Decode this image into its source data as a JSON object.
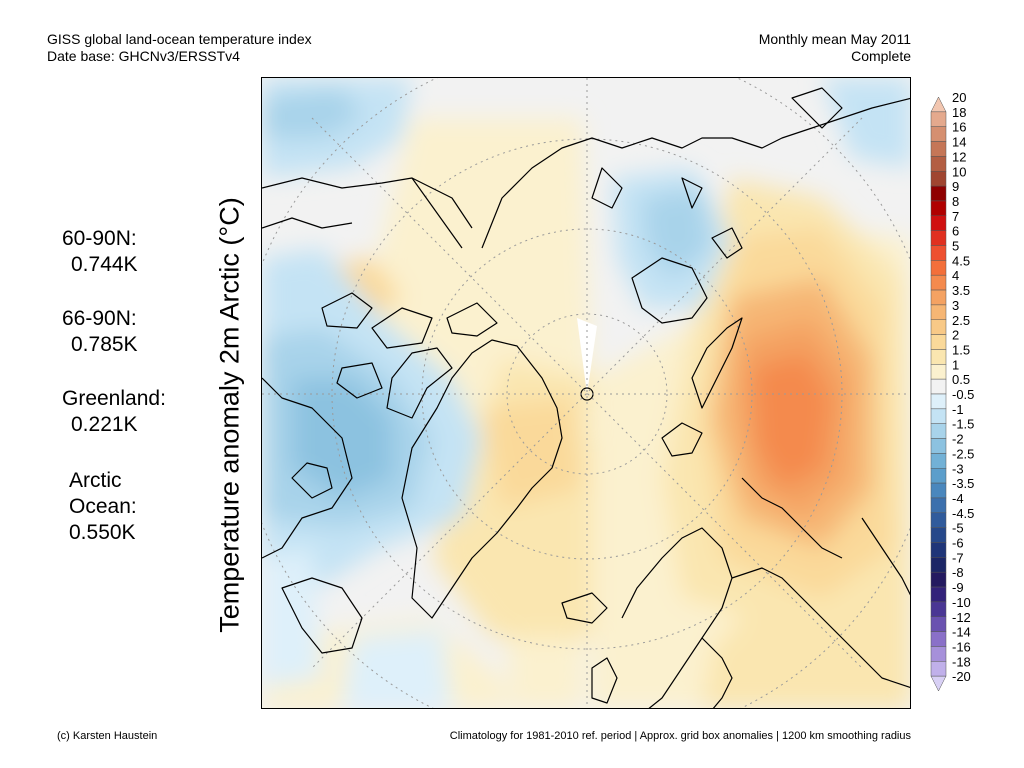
{
  "header": {
    "title": "GISS global land-ocean temperature index",
    "database": "Date base: GHCNv3/ERSSTv4",
    "period": "Monthly mean May 2011",
    "status": "Complete"
  },
  "stats": {
    "n60_label": "60-90N:",
    "n60_value": "0.744K",
    "n66_label": "66-90N:",
    "n66_value": "0.785K",
    "greenland_label": "Greenland:",
    "greenland_value": "0.221K",
    "arctic_label1": "Arctic",
    "arctic_label2": "Ocean:",
    "arctic_value": "0.550K"
  },
  "map": {
    "ylabel": "Temperature anomaly 2m Arctic (°C)"
  },
  "colorbar": {
    "labels": [
      "20",
      "18",
      "16",
      "14",
      "12",
      "10",
      "9",
      "8",
      "7",
      "6",
      "5",
      "4.5",
      "4",
      "3.5",
      "3",
      "2.5",
      "2",
      "1.5",
      "1",
      "0.5",
      "-0.5",
      "-1",
      "-1.5",
      "-2",
      "-2.5",
      "-3",
      "-3.5",
      "-4",
      "-4.5",
      "-5",
      "-6",
      "-7",
      "-8",
      "-9",
      "-10",
      "-12",
      "-14",
      "-16",
      "-18",
      "-20"
    ],
    "colors": [
      "#f2c6b0",
      "#e4a98d",
      "#d58f70",
      "#c57657",
      "#b35e43",
      "#a04530",
      "#8f0000",
      "#b00000",
      "#d01010",
      "#e03020",
      "#ee5030",
      "#f36f3a",
      "#f48a4e",
      "#f4a262",
      "#f6b674",
      "#f8c987",
      "#fad99a",
      "#fae6b0",
      "#fbf1cf",
      "#f2f2f2",
      "#def0fa",
      "#c4e3f4",
      "#a8d3ea",
      "#8cc2e0",
      "#72b1d6",
      "#5c9ecb",
      "#4a87bd",
      "#3c70ad",
      "#305b9c",
      "#26488a",
      "#1f3578",
      "#1c2666",
      "#241a60",
      "#33227a",
      "#4a3694",
      "#6a52b0",
      "#8a70c8",
      "#a690da",
      "#c0b0ea",
      "#d8d0f5"
    ]
  },
  "footer": {
    "credit": "(c) Karsten Haustein",
    "notes": "Climatology for 1981-2010 ref. period | Approx. grid box anomalies | 1200 km smoothing radius"
  }
}
